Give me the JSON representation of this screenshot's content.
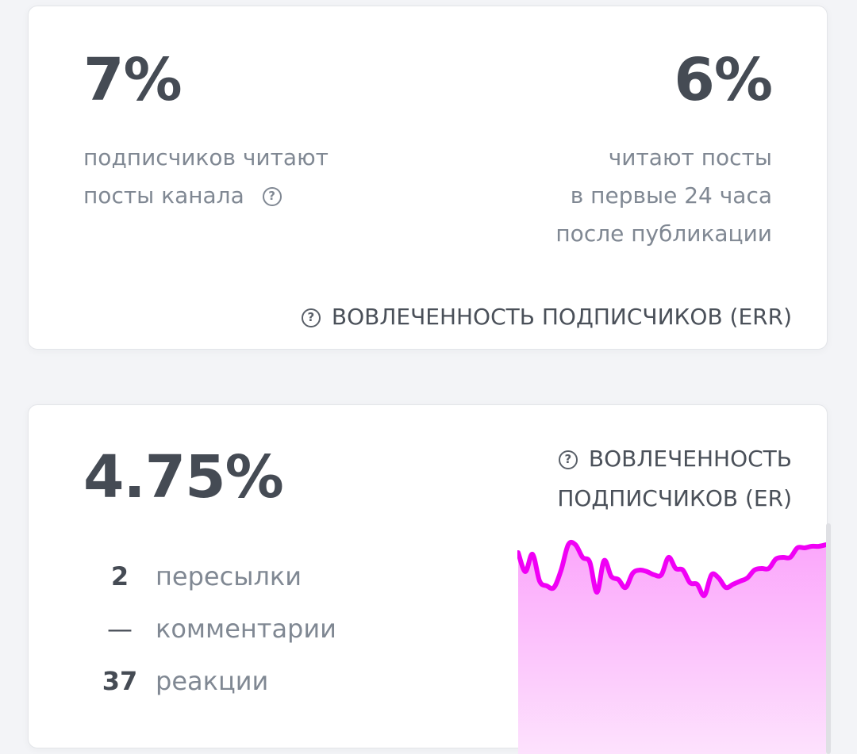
{
  "err_card": {
    "left_value": "7%",
    "left_caption_line1": "подписчиков читают",
    "left_caption_line2": "посты канала",
    "right_value": "6%",
    "right_caption_line1": "читают посты",
    "right_caption_line2": "в первые 24 часа",
    "right_caption_line3": "после публикации",
    "footer_label": "ВОВЛЕЧЕННОСТЬ ПОДПИСЧИКОВ (ERR)",
    "help_icon": "question-circle-icon"
  },
  "er_card": {
    "value": "4.75%",
    "title_line1": "ВОВЛЕЧЕННОСТЬ",
    "title_line2": "ПОДПИСЧИКОВ (ER)",
    "help_icon": "question-circle-icon",
    "stats": [
      {
        "value": "2",
        "label": "пересылки"
      },
      {
        "value": "—",
        "label": "комментарии"
      },
      {
        "value": "37",
        "label": "реакции"
      }
    ]
  },
  "colors": {
    "accent_line": "#f000f5",
    "fill_top": "#fba6fb",
    "fill_bottom": "#fde2fd",
    "text_dark": "#454b54",
    "text_muted": "#808893",
    "background": "#f3f4f7"
  },
  "chart_data": {
    "type": "area",
    "title": "ВОВЛЕЧЕННОСТЬ ПОДПИСЧИКОВ (ER)",
    "xlabel": "",
    "ylabel": "",
    "grid": false,
    "legend": "none",
    "note": "sparkline without axes; values are relative heights (0 = bottom, 100 = top of plot area)",
    "x": [
      0,
      1,
      2,
      3,
      4,
      5,
      6,
      7,
      8,
      9,
      10,
      11,
      12,
      13,
      14,
      15,
      16,
      17,
      18,
      19,
      20,
      21,
      22,
      23,
      24,
      25,
      26,
      27,
      28,
      29,
      30,
      31,
      32,
      33,
      34,
      35,
      36,
      37,
      38,
      39,
      40,
      41,
      42,
      43
    ],
    "values": [
      89,
      77,
      88,
      71,
      68,
      67,
      78,
      94,
      94,
      86,
      83,
      64,
      84,
      74,
      72,
      67,
      76,
      78,
      77,
      75,
      75,
      86,
      79,
      78,
      70,
      69,
      62,
      75,
      73,
      67,
      69,
      71,
      73,
      78,
      79,
      79,
      85,
      86,
      86,
      92,
      92,
      93,
      93,
      94
    ]
  }
}
